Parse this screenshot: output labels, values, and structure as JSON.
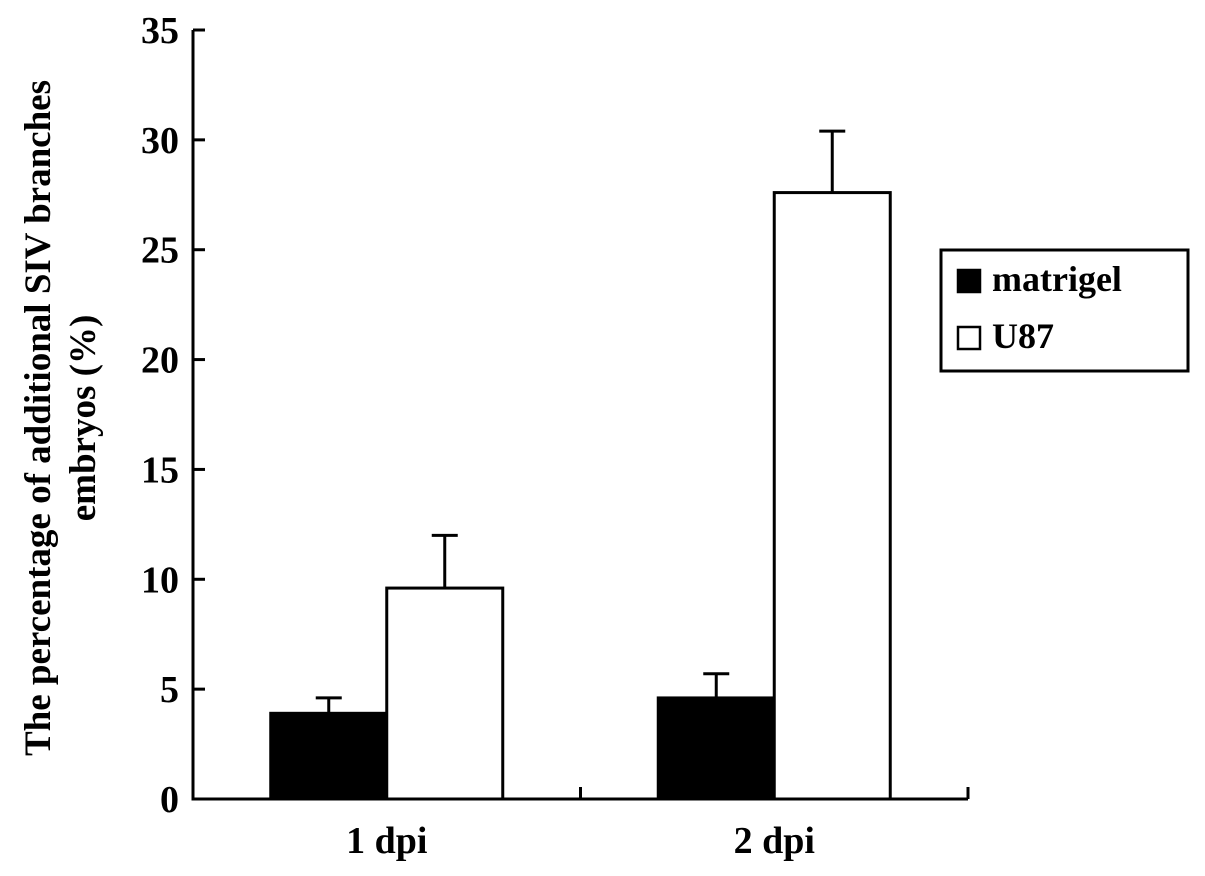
{
  "chart_data": {
    "type": "bar",
    "categories": [
      "1 dpi",
      "2 dpi"
    ],
    "series": [
      {
        "name": "matrigel",
        "color": "#000000",
        "values": [
          3.9,
          4.6
        ],
        "errors": [
          0.7,
          1.1
        ]
      },
      {
        "name": "U87",
        "color": "#ffffff",
        "values": [
          9.6,
          27.6
        ],
        "errors": [
          2.4,
          2.8
        ]
      }
    ],
    "title": "",
    "xlabel": "",
    "ylabel": "The percentage of additional SIV branches embryos (%)",
    "ylabel_lines": [
      "The percentage of additional SIV branches",
      "embryos (%)"
    ],
    "ylim": [
      0,
      35
    ],
    "yticks": [
      0,
      5,
      10,
      15,
      20,
      25,
      30,
      35
    ],
    "grid": false,
    "legend_position": "right"
  }
}
